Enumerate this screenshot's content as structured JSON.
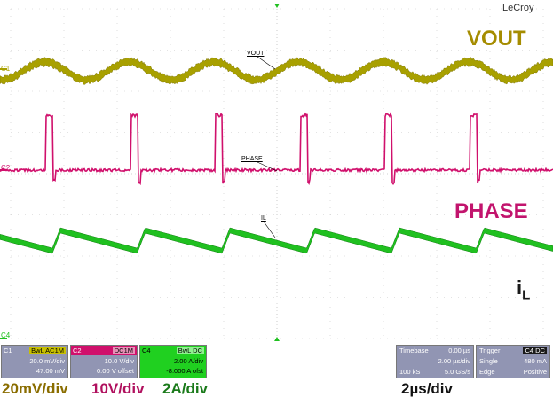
{
  "brand": "LeCroy",
  "labels": {
    "vout": "VOUT",
    "phase": "PHASE",
    "il_main": "i",
    "il_sub": "L"
  },
  "trace_tags": {
    "vout": "VOUT",
    "phase": "PHASE",
    "il": "IL"
  },
  "channel_markers": [
    "C1",
    "C2",
    "C4"
  ],
  "panels": {
    "c1": {
      "name": "C1",
      "coupling": "BwL AC1M",
      "scale": "20.0 mV/div",
      "offset": "47.00 mV"
    },
    "c2": {
      "name": "C2",
      "coupling": "DC1M",
      "scale": "10.0 V/div",
      "offset": "0.00 V offset"
    },
    "c4": {
      "name": "C4",
      "coupling": "BwL DC",
      "scale": "2.00 A/div",
      "offset": "-8.000 A ofst"
    },
    "timebase": {
      "title": "Timebase",
      "delay": "0.00 µs",
      "per_div": "2.00 µs/div",
      "samples": "100 kS",
      "rate": "5.0 GS/s"
    },
    "trigger": {
      "title": "Trigger",
      "chan": "C4 DC",
      "mode": "Single",
      "level": "480 mA",
      "type": "Edge",
      "slope": "Positive"
    }
  },
  "bottom": {
    "c1": "20mV/div",
    "c2": "10V/div",
    "c4": "2A/div",
    "time": "2µs/div"
  },
  "colors": {
    "vout": "#a8a000",
    "phase": "#d0106c",
    "il": "#20c020",
    "vout_label": "#a58c00",
    "phase_label": "#c2146d",
    "bottom_c1": "#8a6d00",
    "bottom_c2": "#b0105e",
    "bottom_c4": "#1a7a1a",
    "c1_panel": "#c8c000",
    "c2_panel": "#d0106c",
    "c4_panel": "#20d020",
    "panel_bg": "#9195b3"
  }
}
